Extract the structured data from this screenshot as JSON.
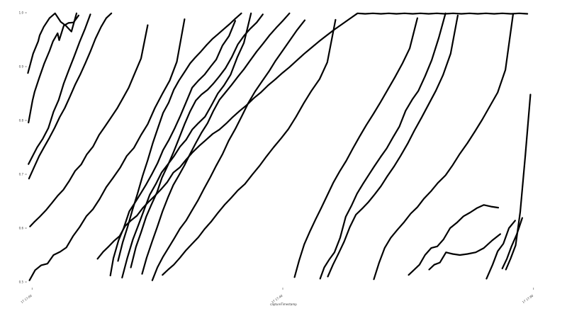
{
  "chart_data": {
    "type": "line",
    "title": "",
    "xlabel": "captureTimestamp",
    "ylabel": "",
    "x_ticks": [
      "17 17:00",
      "17 17:40",
      "17 17:80"
    ],
    "y_ticks": [
      "0.5",
      "0.6",
      "0.7",
      "0.8",
      "0.9",
      "1.0"
    ],
    "xlim": [
      0,
      100
    ],
    "ylim": [
      0.5,
      1.0
    ],
    "grid": false,
    "legend": "none",
    "line_color": "#000000",
    "series": [
      {
        "x": [
          0.2,
          1.2,
          2.2,
          2.5,
          3.3,
          4.4,
          5.5,
          6.6,
          7.6,
          8.7,
          9.7
        ],
        "y": [
          0.888,
          0.924,
          0.947,
          0.958,
          0.974,
          0.99,
          0.999,
          0.983,
          0.976,
          0.965,
          0.999
        ]
      },
      {
        "x": [
          0.3,
          1.1,
          1.5,
          2.4,
          3.4,
          4.4,
          5.1,
          6.0,
          6.3,
          7.2,
          8.1,
          9.1,
          10.1
        ],
        "y": [
          0.796,
          0.837,
          0.853,
          0.879,
          0.906,
          0.929,
          0.947,
          0.962,
          0.949,
          0.976,
          0.981,
          0.982,
          0.995
        ]
      },
      {
        "x": [
          0.3,
          0.9,
          2.0,
          3.1,
          4.2,
          5.2,
          6.2,
          7.2,
          8.2,
          9.2,
          10.3,
          11.3,
          12.4
        ],
        "y": [
          0.719,
          0.73,
          0.75,
          0.766,
          0.786,
          0.816,
          0.838,
          0.869,
          0.894,
          0.918,
          0.946,
          0.969,
          0.997
        ]
      },
      {
        "x": [
          0.4,
          1.4,
          2.4,
          3.4,
          4.4,
          5.4,
          6.4,
          7.4,
          8.4,
          9.4,
          10.4,
          11.4,
          12.4,
          13.4,
          14.5,
          15.5,
          16.5
        ],
        "y": [
          0.692,
          0.713,
          0.734,
          0.751,
          0.768,
          0.786,
          0.806,
          0.823,
          0.844,
          0.866,
          0.885,
          0.906,
          0.928,
          0.952,
          0.974,
          0.99,
          0.999
        ]
      },
      {
        "x": [
          0.6,
          1.4,
          2.5,
          3.7,
          4.9,
          6.0,
          7.1,
          8.3,
          9.4,
          10.6,
          11.7,
          12.9,
          14.1,
          15.2,
          16.4,
          17.6,
          18.8,
          19.9,
          21.1,
          22.3,
          23.6
        ],
        "y": [
          0.603,
          0.611,
          0.621,
          0.633,
          0.647,
          0.66,
          0.671,
          0.688,
          0.706,
          0.718,
          0.737,
          0.751,
          0.773,
          0.788,
          0.805,
          0.822,
          0.842,
          0.861,
          0.888,
          0.915,
          0.977
        ]
      },
      {
        "x": [
          0.5,
          1.6,
          2.8,
          4.0,
          5.2,
          6.5,
          7.7,
          9.0,
          10.3,
          11.6,
          12.9,
          14.2,
          15.5,
          16.8,
          18.2,
          19.5,
          20.9,
          22.3,
          23.6,
          25.0,
          26.5,
          27.9,
          29.3,
          30.8
        ],
        "y": [
          0.503,
          0.522,
          0.531,
          0.534,
          0.55,
          0.556,
          0.564,
          0.585,
          0.602,
          0.622,
          0.635,
          0.654,
          0.676,
          0.693,
          0.712,
          0.734,
          0.749,
          0.773,
          0.793,
          0.823,
          0.85,
          0.874,
          0.909,
          0.988
        ]
      },
      {
        "x": [
          13.8,
          14.9,
          16.0,
          17.0,
          18.1,
          19.2,
          20.3,
          21.5,
          22.6,
          23.8,
          25.0,
          26.2,
          27.4,
          28.6,
          29.9,
          31.1,
          32.4,
          33.7,
          35.0,
          36.3,
          37.6,
          38.9,
          40.2,
          41.6,
          42.9,
          44.3,
          45.7,
          47.1,
          48.5,
          49.9,
          51.3,
          52.7,
          54.2,
          55.6,
          57.1,
          58.6,
          60.1,
          61.6,
          63.1,
          64.6,
          66.1,
          67.6,
          69.2,
          70.7,
          72.2,
          73.8,
          75.4,
          76.9,
          78.5,
          80.1,
          81.7,
          83.3,
          84.9,
          86.5,
          88.1,
          89.7,
          91.3,
          92.9,
          94.6,
          96.2,
          97.8
        ],
        "y": [
          0.543,
          0.556,
          0.566,
          0.576,
          0.585,
          0.604,
          0.614,
          0.623,
          0.637,
          0.649,
          0.66,
          0.672,
          0.685,
          0.703,
          0.713,
          0.727,
          0.741,
          0.753,
          0.764,
          0.775,
          0.783,
          0.794,
          0.806,
          0.818,
          0.828,
          0.841,
          0.852,
          0.865,
          0.876,
          0.888,
          0.899,
          0.911,
          0.924,
          0.935,
          0.947,
          0.958,
          0.969,
          0.979,
          0.989,
          0.999,
          0.998,
          0.999,
          0.998,
          0.999,
          0.998,
          0.999,
          0.998,
          0.999,
          0.998,
          0.999,
          0.998,
          0.999,
          0.998,
          0.999,
          0.998,
          0.999,
          0.998,
          0.999,
          0.998,
          0.999,
          0.998
        ]
      },
      {
        "x": [
          16.3,
          16.9,
          17.9,
          18.9,
          20.0,
          21.1,
          22.2,
          23.3,
          24.4,
          25.5,
          26.6,
          27.7,
          28.9,
          30.0,
          31.2,
          32.3,
          33.5,
          34.7,
          35.9,
          37.0,
          38.2,
          39.5,
          40.7
        ],
        "y": [
          0.512,
          0.544,
          0.577,
          0.6,
          0.631,
          0.647,
          0.664,
          0.681,
          0.7,
          0.72,
          0.745,
          0.763,
          0.786,
          0.809,
          0.836,
          0.861,
          0.874,
          0.885,
          0.9,
          0.913,
          0.939,
          0.957,
          0.985
        ]
      },
      {
        "x": [
          17.8,
          18.7,
          19.7,
          20.6,
          21.6,
          22.6,
          23.6,
          24.6,
          25.6,
          26.6,
          27.7,
          28.7,
          29.7,
          30.8,
          31.9,
          32.9,
          34.0,
          35.1,
          36.2,
          37.3,
          38.5,
          39.6,
          40.7,
          41.9
        ],
        "y": [
          0.539,
          0.573,
          0.603,
          0.633,
          0.664,
          0.697,
          0.726,
          0.758,
          0.786,
          0.814,
          0.833,
          0.857,
          0.874,
          0.89,
          0.906,
          0.917,
          0.928,
          0.94,
          0.951,
          0.96,
          0.97,
          0.979,
          0.989,
          0.999
        ]
      },
      {
        "x": [
          18.6,
          19.6,
          20.7,
          21.8,
          22.9,
          24.0,
          25.2,
          26.3,
          27.5,
          28.7,
          29.9,
          31.1,
          32.3,
          33.5,
          34.8,
          36.0,
          37.3,
          38.5,
          39.8,
          41.1,
          42.4,
          43.8
        ],
        "y": [
          0.508,
          0.544,
          0.579,
          0.606,
          0.634,
          0.662,
          0.682,
          0.703,
          0.718,
          0.733,
          0.751,
          0.764,
          0.783,
          0.795,
          0.807,
          0.827,
          0.85,
          0.865,
          0.885,
          0.917,
          0.944,
          0.999
        ]
      },
      {
        "x": [
          20.3,
          21.3,
          22.3,
          23.3,
          24.3,
          25.4,
          26.4,
          27.5,
          28.6,
          29.7,
          30.8,
          31.9,
          33.0,
          34.1,
          35.3,
          36.4,
          37.6,
          38.8,
          40.0,
          41.2,
          42.4,
          43.6,
          44.9,
          46.1
        ],
        "y": [
          0.527,
          0.565,
          0.592,
          0.621,
          0.643,
          0.666,
          0.694,
          0.716,
          0.74,
          0.766,
          0.793,
          0.817,
          0.837,
          0.848,
          0.857,
          0.868,
          0.882,
          0.897,
          0.917,
          0.941,
          0.957,
          0.97,
          0.982,
          0.997
        ]
      },
      {
        "x": [
          22.5,
          23.4,
          24.5,
          25.5,
          26.5,
          27.6,
          28.6,
          29.7,
          30.8,
          31.9,
          33.0,
          34.1,
          35.3,
          36.4,
          37.6,
          38.8,
          40.0,
          41.2,
          42.4,
          43.6,
          44.9,
          46.1,
          47.4,
          48.7,
          50.0,
          51.3
        ],
        "y": [
          0.515,
          0.545,
          0.576,
          0.603,
          0.631,
          0.658,
          0.68,
          0.698,
          0.717,
          0.738,
          0.758,
          0.777,
          0.795,
          0.817,
          0.838,
          0.852,
          0.866,
          0.881,
          0.895,
          0.911,
          0.928,
          0.942,
          0.958,
          0.972,
          0.985,
          0.999
        ]
      },
      {
        "x": [
          24.5,
          25.5,
          26.6,
          27.7,
          28.8,
          29.9,
          31.1,
          32.2,
          33.4,
          34.6,
          35.8,
          37.0,
          38.2,
          39.4,
          40.7,
          42.0,
          43.3,
          44.6,
          45.9,
          47.3,
          48.6,
          50.0,
          51.4,
          52.8,
          54.3
        ],
        "y": [
          0.503,
          0.527,
          0.547,
          0.564,
          0.581,
          0.599,
          0.614,
          0.632,
          0.651,
          0.673,
          0.694,
          0.716,
          0.737,
          0.762,
          0.784,
          0.808,
          0.833,
          0.854,
          0.872,
          0.891,
          0.911,
          0.93,
          0.949,
          0.968,
          0.986
        ]
      },
      {
        "x": [
          26.5,
          27.6,
          28.7,
          29.9,
          31.1,
          32.3,
          33.5,
          34.7,
          36.0,
          37.3,
          38.6,
          39.9,
          41.2,
          42.6,
          44.0,
          45.4,
          46.8,
          48.2,
          49.7,
          51.1,
          52.6,
          54.1,
          55.6,
          57.2,
          58.7,
          60.3
        ],
        "y": [
          0.513,
          0.523,
          0.532,
          0.545,
          0.559,
          0.571,
          0.583,
          0.598,
          0.612,
          0.628,
          0.643,
          0.656,
          0.67,
          0.682,
          0.699,
          0.715,
          0.733,
          0.75,
          0.767,
          0.784,
          0.807,
          0.832,
          0.855,
          0.877,
          0.908,
          0.987
        ]
      },
      {
        "x": [
          52.3,
          53.2,
          54.2,
          55.3,
          56.4,
          57.5,
          58.7,
          59.9,
          61.1,
          62.4,
          63.7,
          65.0,
          66.3,
          67.7,
          69.1,
          70.5,
          71.9,
          73.4,
          74.8,
          76.3
        ],
        "y": [
          0.509,
          0.54,
          0.57,
          0.594,
          0.616,
          0.637,
          0.661,
          0.685,
          0.705,
          0.725,
          0.748,
          0.77,
          0.791,
          0.812,
          0.834,
          0.857,
          0.88,
          0.906,
          0.934,
          0.99
        ]
      },
      {
        "x": [
          57.3,
          58.1,
          59.1,
          60.1,
          61.2,
          62.3,
          63.4,
          64.5,
          65.6,
          66.8,
          67.9,
          69.1,
          70.3,
          71.5,
          72.8,
          74.0,
          75.3,
          76.5,
          77.8,
          79.1,
          80.5,
          81.8
        ],
        "y": [
          0.506,
          0.527,
          0.542,
          0.555,
          0.582,
          0.621,
          0.641,
          0.664,
          0.681,
          0.699,
          0.715,
          0.732,
          0.748,
          0.768,
          0.789,
          0.818,
          0.839,
          0.855,
          0.882,
          0.912,
          0.954,
          0.999
        ]
      },
      {
        "x": [
          58.8,
          59.8,
          60.9,
          62.0,
          63.1,
          64.3,
          65.5,
          66.7,
          67.9,
          69.2,
          70.4,
          71.7,
          73.0,
          74.4,
          75.7,
          77.1,
          78.5,
          79.9,
          81.3,
          82.8,
          84.2
        ],
        "y": [
          0.51,
          0.532,
          0.553,
          0.575,
          0.602,
          0.625,
          0.636,
          0.648,
          0.662,
          0.678,
          0.696,
          0.714,
          0.734,
          0.757,
          0.781,
          0.805,
          0.83,
          0.855,
          0.884,
          0.924,
          0.995
        ]
      },
      {
        "x": [
          67.8,
          68.8,
          69.9,
          71.1,
          72.4,
          73.7,
          75.0,
          76.3,
          77.6,
          79.0,
          80.3,
          81.8,
          83.2,
          84.6,
          86.1,
          87.5,
          89.0,
          90.5,
          92.0,
          93.5,
          95.0
        ],
        "y": [
          0.505,
          0.535,
          0.563,
          0.582,
          0.597,
          0.611,
          0.627,
          0.639,
          0.655,
          0.669,
          0.684,
          0.698,
          0.717,
          0.738,
          0.758,
          0.779,
          0.802,
          0.827,
          0.852,
          0.894,
          0.997
        ]
      },
      {
        "x": [
          74.6,
          75.6,
          76.7,
          77.8,
          79.0,
          80.2,
          81.4,
          82.7,
          84.0,
          85.3,
          86.6,
          87.9,
          89.3,
          90.7,
          92.1
        ],
        "y": [
          0.513,
          0.522,
          0.532,
          0.55,
          0.563,
          0.566,
          0.579,
          0.6,
          0.61,
          0.622,
          0.629,
          0.637,
          0.643,
          0.64,
          0.638
        ]
      },
      {
        "x": [
          78.6,
          79.6,
          80.7,
          81.9,
          83.2,
          84.6,
          86.1,
          87.7,
          89.3,
          90.9,
          92.5
        ],
        "y": [
          0.523,
          0.532,
          0.536,
          0.555,
          0.552,
          0.55,
          0.552,
          0.555,
          0.563,
          0.577,
          0.589
        ]
      },
      {
        "x": [
          89.8,
          91.0,
          92.0,
          93.1,
          94.2,
          95.4
        ],
        "y": [
          0.506,
          0.532,
          0.557,
          0.571,
          0.6,
          0.614
        ]
      },
      {
        "x": [
          92.9,
          93.8,
          94.7,
          95.7,
          96.8
        ],
        "y": [
          0.525,
          0.543,
          0.566,
          0.588,
          0.619
        ]
      },
      {
        "x": [
          93.6,
          94.5,
          95.5,
          96.4,
          97.4,
          98.4
        ],
        "y": [
          0.523,
          0.543,
          0.568,
          0.63,
          0.735,
          0.848
        ]
      }
    ]
  }
}
